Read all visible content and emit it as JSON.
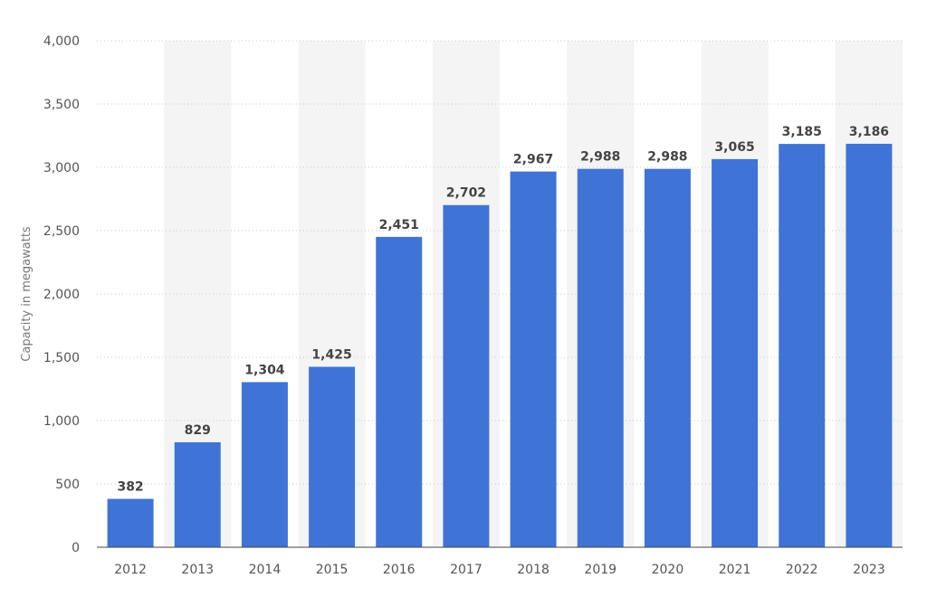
{
  "chart_data": {
    "type": "bar",
    "categories": [
      "2012",
      "2013",
      "2014",
      "2015",
      "2016",
      "2017",
      "2018",
      "2019",
      "2020",
      "2021",
      "2022",
      "2023"
    ],
    "values": [
      382,
      829,
      1304,
      1425,
      2451,
      2702,
      2967,
      2988,
      2988,
      3065,
      3185,
      3186
    ],
    "data_labels": [
      "382",
      "829",
      "1,304",
      "1,425",
      "2,451",
      "2,702",
      "2,967",
      "2,988",
      "2,988",
      "3,065",
      "3,185",
      "3,186"
    ],
    "ylabel": "Capacity in megawatts",
    "ylim": [
      0,
      4000
    ],
    "yticks": [
      0,
      500,
      1000,
      1500,
      2000,
      2500,
      3000,
      3500,
      4000
    ],
    "ytick_labels": [
      "0",
      "500",
      "1,000",
      "1,500",
      "2,000",
      "2,500",
      "3,000",
      "3,500",
      "4,000"
    ],
    "grid": true,
    "bar_color": "#3f74d6",
    "band_color": "#f4f4f4"
  }
}
